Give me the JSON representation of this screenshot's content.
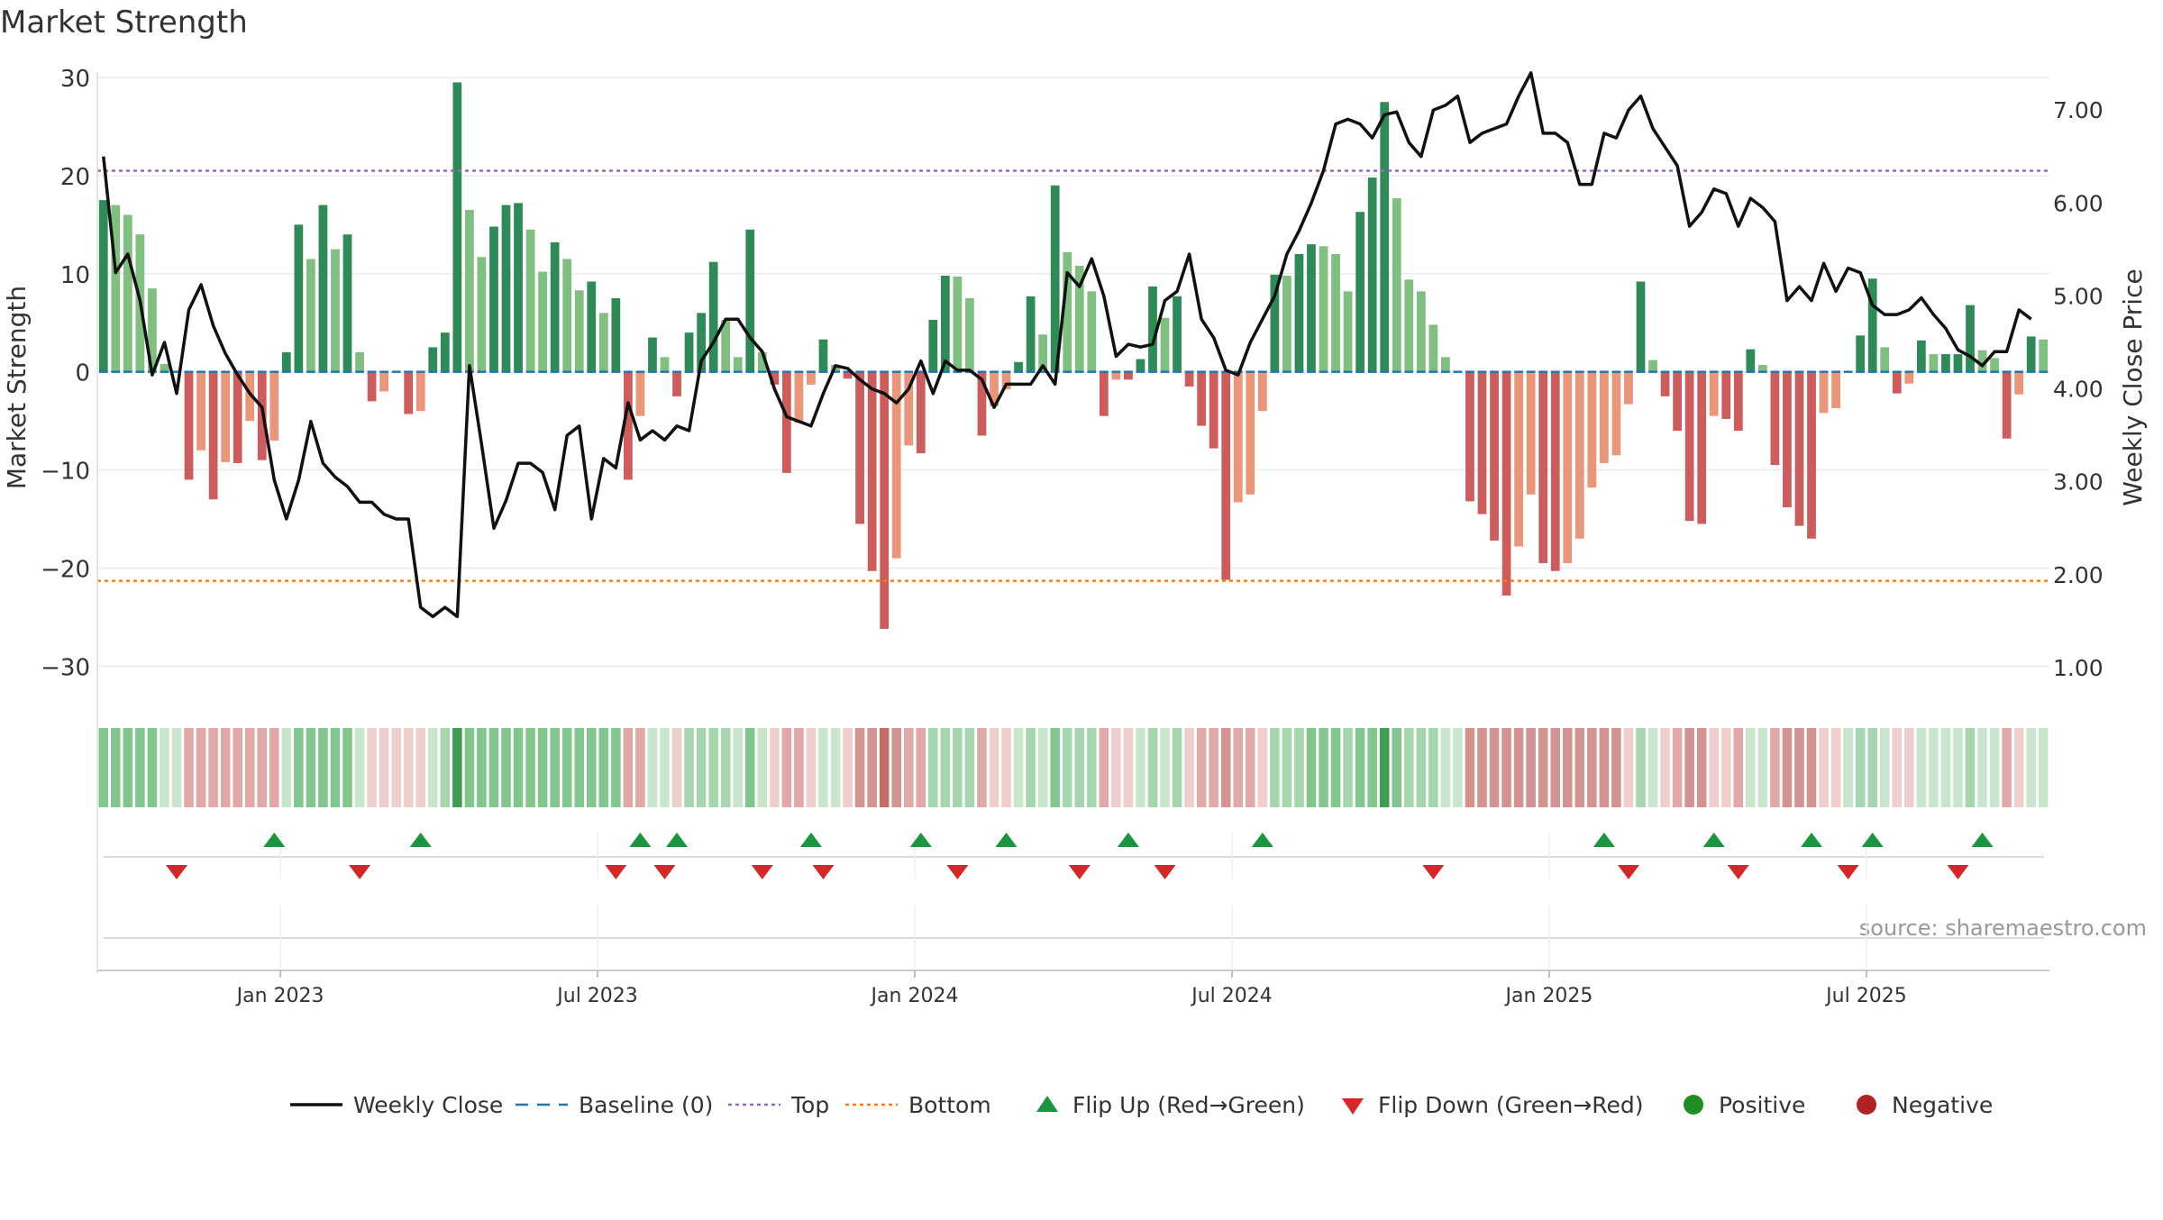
{
  "chart_data": {
    "type": "bar+line",
    "title": "Market Strength",
    "ylabel_left": "Market Strength",
    "ylabel_right": "Weekly Close Price",
    "source_note": "source: sharemaestro.com",
    "ylim_left": [
      -33,
      30
    ],
    "ylim_right": [
      0.7,
      7.35
    ],
    "left_ticks": [
      30,
      20,
      10,
      0,
      -10,
      -20,
      -30
    ],
    "left_tick_labels": [
      "30",
      "20",
      "10",
      "0",
      "−10",
      "−20",
      "−30"
    ],
    "right_ticks": [
      7,
      6,
      5,
      4,
      3,
      2,
      1
    ],
    "right_tick_labels": [
      "7.00",
      "6.00",
      "5.00",
      "4.00",
      "3.00",
      "2.00",
      "1.00"
    ],
    "x_tick_labels": [
      "Jan 2023",
      "Jul 2023",
      "Jan 2024",
      "Jul 2024",
      "Jan 2025",
      "Jul 2025"
    ],
    "x_tick_weeks": [
      14.5,
      40.5,
      66.5,
      92.5,
      118.5,
      144.5
    ],
    "top_line": 20.5,
    "bottom_line": -21.3,
    "baseline": 0,
    "strength_values": [
      17.5,
      17,
      16,
      14,
      8.5,
      0.8,
      0,
      -11,
      -8,
      -13,
      -9.2,
      -9.3,
      -5,
      -9,
      -7,
      2,
      15,
      11.5,
      17,
      12.5,
      14,
      2,
      -3,
      -2,
      0,
      -4.3,
      -4,
      2.5,
      4,
      29.5,
      16.5,
      11.7,
      14.8,
      17,
      17.2,
      14.5,
      10.2,
      13.2,
      11.5,
      8.3,
      9.2,
      6,
      7.5,
      -11,
      -4.5,
      3.5,
      1.5,
      -2.5,
      4,
      6,
      11.2,
      5.3,
      1.5,
      14.5,
      2,
      -1.3,
      -10.3,
      -5.2,
      -1.3,
      3.3,
      0.7,
      -0.7,
      -15.5,
      -20.3,
      -26.2,
      -19,
      -7.5,
      -8.3,
      5.3,
      9.8,
      9.7,
      7.5,
      -6.5,
      -3.5,
      -1.8,
      1,
      7.7,
      3.8,
      19,
      12.2,
      10.8,
      8.2,
      -4.5,
      -0.8,
      -0.8,
      1.3,
      8.7,
      5.5,
      7.7,
      -1.5,
      -5.5,
      -7.8,
      -21.2,
      -13.3,
      -12.5,
      -4,
      9.9,
      9.8,
      12,
      13,
      12.8,
      12,
      8.2,
      16.3,
      19.8,
      27.5,
      17.7,
      9.4,
      8.2,
      4.8,
      1.5,
      0,
      -13.2,
      -14.5,
      -17.2,
      -22.8,
      -17.8,
      -12.5,
      -19.5,
      -20.3,
      -19.5,
      -17,
      -11.8,
      -9.3,
      -8.5,
      -3.3,
      9.2,
      1.2,
      -2.5,
      -6,
      -15.2,
      -15.5,
      -4.5,
      -4.8,
      -6,
      2.3,
      0.7,
      -9.5,
      -13.8,
      -15.7,
      -17,
      -4.2,
      -3.7,
      0,
      3.7,
      9.5,
      2.5,
      -2.2,
      -1.2,
      3.2,
      1.8,
      1.8,
      1.8,
      6.8,
      2.2,
      1.4,
      -6.8,
      -2.3,
      3.6,
      3.3
    ],
    "price_values": [
      6.5,
      5.25,
      5.45,
      4.95,
      4.15,
      4.5,
      3.95,
      4.85,
      5.12,
      4.68,
      4.38,
      4.15,
      3.95,
      3.8,
      3.02,
      2.6,
      3.02,
      3.65,
      3.2,
      3.05,
      2.95,
      2.78,
      2.78,
      2.65,
      2.6,
      2.6,
      1.65,
      1.55,
      1.65,
      1.55,
      4.25,
      3.4,
      2.5,
      2.8,
      3.2,
      3.2,
      3.1,
      2.7,
      3.5,
      3.6,
      2.6,
      3.25,
      3.15,
      3.85,
      3.45,
      3.55,
      3.45,
      3.6,
      3.55,
      4.3,
      4.5,
      4.75,
      4.75,
      4.55,
      4.4,
      4.0,
      3.7,
      3.65,
      3.6,
      3.95,
      4.25,
      4.22,
      4.1,
      4.0,
      3.95,
      3.85,
      4.0,
      4.3,
      3.95,
      4.3,
      4.2,
      4.2,
      4.1,
      3.8,
      4.05,
      4.05,
      4.05,
      4.25,
      4.05,
      5.25,
      5.1,
      5.4,
      5.0,
      4.35,
      4.48,
      4.45,
      4.48,
      4.95,
      5.05,
      5.45,
      4.75,
      4.55,
      4.2,
      4.15,
      4.5,
      4.75,
      5.0,
      5.45,
      5.7,
      6.0,
      6.35,
      6.85,
      6.9,
      6.85,
      6.7,
      6.95,
      6.98,
      6.65,
      6.5,
      7.0,
      7.05,
      7.15,
      6.65,
      6.75,
      6.8,
      6.85,
      7.15,
      7.4,
      6.75,
      6.75,
      6.65,
      6.2,
      6.2,
      6.75,
      6.7,
      7.0,
      7.15,
      6.8,
      6.6,
      6.4,
      5.75,
      5.9,
      6.15,
      6.1,
      5.75,
      6.05,
      5.95,
      5.8,
      4.95,
      5.1,
      4.95,
      5.35,
      5.05,
      5.3,
      5.25,
      4.9,
      4.8,
      4.8,
      4.85,
      4.98,
      4.8,
      4.65,
      4.42,
      4.35,
      4.25,
      4.4,
      4.4,
      4.85,
      4.75
    ],
    "band_levels": [
      3,
      3,
      3,
      3,
      3,
      1,
      1,
      -2,
      -2,
      -2,
      -2,
      -2,
      -2,
      -2,
      -2,
      1,
      3,
      3,
      3,
      3,
      3,
      1,
      -1,
      -1,
      -1,
      -1,
      -1,
      1,
      2,
      4,
      3,
      3,
      3,
      3,
      3,
      3,
      3,
      3,
      3,
      3,
      3,
      3,
      3,
      -2,
      -2,
      1,
      1,
      -1,
      2,
      2,
      2,
      2,
      1,
      3,
      1,
      -1,
      -2,
      -2,
      -1,
      1,
      1,
      -1,
      -3,
      -3,
      -4,
      -3,
      -2,
      -2,
      2,
      2,
      2,
      2,
      -2,
      -1,
      -1,
      1,
      2,
      1,
      3,
      2,
      2,
      2,
      -2,
      -1,
      -1,
      1,
      2,
      1,
      2,
      -1,
      -2,
      -2,
      -3,
      -2,
      -2,
      -1,
      2,
      2,
      2,
      3,
      3,
      3,
      2,
      3,
      3,
      4,
      3,
      2,
      2,
      2,
      1,
      1,
      -3,
      -3,
      -3,
      -3,
      -3,
      -3,
      -3,
      -3,
      -3,
      -3,
      -3,
      -3,
      -3,
      -1,
      2,
      1,
      -1,
      -2,
      -3,
      -3,
      -1,
      -1,
      -2,
      1,
      1,
      -2,
      -3,
      -3,
      -3,
      -1,
      -1,
      1,
      2,
      2,
      1,
      -1,
      -1,
      1,
      1,
      1,
      1,
      2,
      1,
      1,
      -2,
      -1,
      1,
      1
    ],
    "flip_up_weeks": [
      14,
      26,
      44,
      47,
      58,
      67,
      74,
      84,
      95,
      123,
      132,
      140,
      145,
      154
    ],
    "flip_down_weeks": [
      6,
      21,
      42,
      46,
      54,
      59,
      70,
      80,
      87,
      109,
      125,
      134,
      143,
      152
    ],
    "marker_lines_weeks": [
      14.5,
      40.5,
      66.5,
      92.5,
      118.5,
      144.5
    ],
    "colors": {
      "strong_green": "#2e8b57",
      "light_green": "#7fbf7f",
      "strong_red": "#cd5c5c",
      "light_red": "#e9967a",
      "price": "#111111",
      "baseline": "#1f77b4",
      "top": "#9467bd",
      "bottom": "#ff7f0e",
      "flip_up": "#1a9641",
      "flip_down": "#d62728",
      "positive": "#228b22",
      "negative": "#b22222",
      "grid": "#ececec",
      "axis": "#cccccc",
      "text": "#333333"
    },
    "legend": [
      {
        "label": "Weekly Close",
        "kind": "line-solid"
      },
      {
        "label": "Baseline (0)",
        "kind": "line-dash"
      },
      {
        "label": "Top",
        "kind": "line-dot-purple"
      },
      {
        "label": "Bottom",
        "kind": "line-dot-orange"
      },
      {
        "label": "Flip Up (Red→Green)",
        "kind": "tri-up"
      },
      {
        "label": "Flip Down (Green→Red)",
        "kind": "tri-down"
      },
      {
        "label": "Positive",
        "kind": "dot-green"
      },
      {
        "label": "Negative",
        "kind": "dot-red"
      }
    ]
  }
}
